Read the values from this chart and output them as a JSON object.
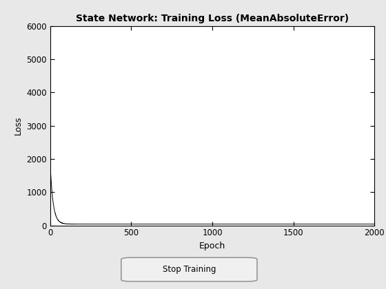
{
  "title": "State Network: Training Loss (MeanAbsoluteError)",
  "xlabel": "Epoch",
  "ylabel": "Loss",
  "xlim": [
    0,
    2000
  ],
  "ylim": [
    0,
    6000
  ],
  "xticks": [
    0,
    500,
    1000,
    1500,
    2000
  ],
  "yticks": [
    0,
    1000,
    2000,
    3000,
    4000,
    5000,
    6000
  ],
  "line_color": "#000000",
  "background_color": "#e8e8e8",
  "axes_bg_color": "#ffffff",
  "grid_color": "#ffffff",
  "title_fontsize": 10,
  "label_fontsize": 9,
  "tick_fontsize": 8.5,
  "button_text": "Stop Training",
  "initial_loss": 1780,
  "decay_rate": 0.055,
  "noise_scale": 15,
  "flat_loss": 40,
  "n_epochs": 2000
}
